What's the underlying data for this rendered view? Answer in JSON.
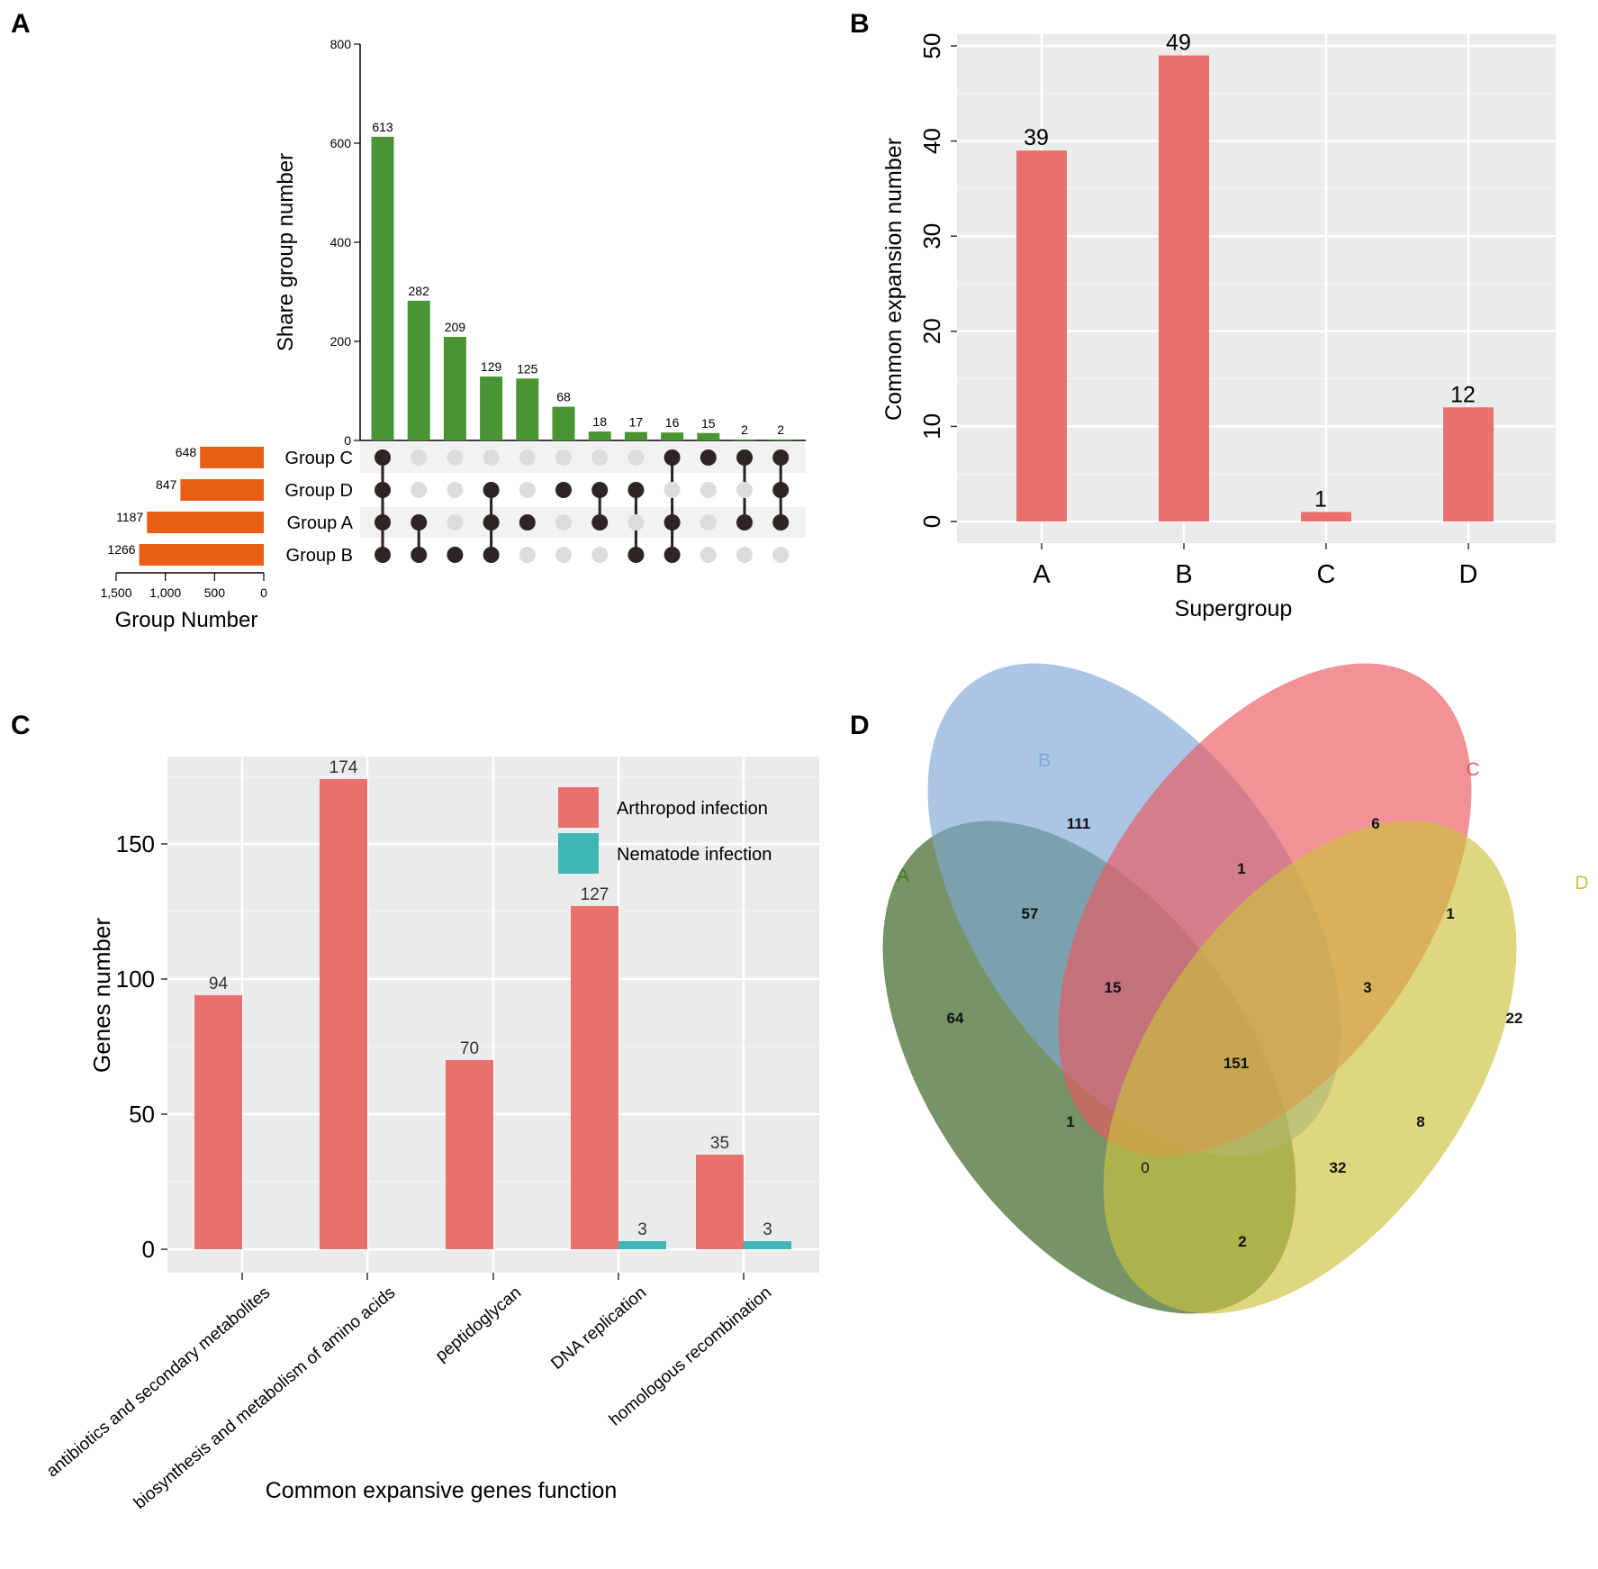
{
  "chart_data": [
    {
      "panel": "A",
      "type": "bar",
      "subtype": "upset",
      "ylabel": "Share group number",
      "ylim": [
        0,
        800
      ],
      "yticks": [
        0,
        200,
        400,
        600,
        800
      ],
      "values": [
        613,
        282,
        209,
        129,
        125,
        68,
        18,
        17,
        16,
        15,
        2,
        2
      ],
      "sets": [
        "Group C",
        "Group D",
        "Group A",
        "Group B"
      ],
      "intersections": [
        [
          "Group C",
          "Group D",
          "Group A",
          "Group B"
        ],
        [
          "Group A",
          "Group B"
        ],
        [
          "Group B"
        ],
        [
          "Group D",
          "Group A",
          "Group B"
        ],
        [
          "Group A"
        ],
        [
          "Group D"
        ],
        [
          "Group D",
          "Group A"
        ],
        [
          "Group D",
          "Group B"
        ],
        [
          "Group C",
          "Group A",
          "Group B"
        ],
        [
          "Group C"
        ],
        [
          "Group C",
          "Group A"
        ],
        [
          "Group C",
          "Group D",
          "Group A"
        ]
      ],
      "set_sizes": [
        648,
        847,
        1187,
        1266
      ],
      "set_size_xlabel": "Group Number",
      "set_size_ticks": [
        "1,500",
        "1,000",
        "500",
        "0"
      ],
      "set_size_tick_values": [
        1500,
        1000,
        500,
        0
      ],
      "bar_color": "#4a9434",
      "set_bar_color": "#ea5f16"
    },
    {
      "panel": "B",
      "type": "bar",
      "categories": [
        "A",
        "B",
        "C",
        "D"
      ],
      "values": [
        39,
        49,
        1,
        12
      ],
      "xlabel": "Supergroup",
      "ylabel": "Common expansion number",
      "ylim": [
        -2.5,
        51.5
      ],
      "yticks": [
        0,
        10,
        20,
        30,
        40,
        50
      ],
      "bar_color": "#e9706c"
    },
    {
      "panel": "C",
      "type": "bar",
      "categories": [
        "antibiotics and secondary metabolites",
        "biosynthesis and metabolism of amino acids",
        "peptidoglycan",
        "DNA replication",
        "homologous recombination"
      ],
      "series": [
        {
          "name": "Arthropod infection",
          "values": [
            94,
            174,
            70,
            127,
            35
          ],
          "color": "#e9706c"
        },
        {
          "name": "Nematode infection",
          "values": [
            null,
            null,
            null,
            3,
            3
          ],
          "color": "#3fb6b3"
        }
      ],
      "xlabel": "Common expansive genes function",
      "ylabel": "Genes number",
      "ylim": [
        -9,
        183
      ],
      "yticks": [
        0,
        50,
        100,
        150
      ],
      "legend": "top-right"
    },
    {
      "panel": "D",
      "type": "venn",
      "sets": [
        {
          "name": "A",
          "color": "#2e5a14"
        },
        {
          "name": "B",
          "color": "#7ea6d6"
        },
        {
          "name": "C",
          "color": "#e9585e"
        },
        {
          "name": "D",
          "color": "#ccc23c"
        }
      ],
      "regions": [
        {
          "sets": "A",
          "value": 64
        },
        {
          "sets": "B",
          "value": 111
        },
        {
          "sets": "C",
          "value": 6
        },
        {
          "sets": "D",
          "value": 22
        },
        {
          "sets": "AB",
          "value": 57
        },
        {
          "sets": "BC",
          "value": 1
        },
        {
          "sets": "CD",
          "value": 1
        },
        {
          "sets": "ABC",
          "value": 15
        },
        {
          "sets": "BCD",
          "value": 3
        },
        {
          "sets": "ABCD",
          "value": 151
        },
        {
          "sets": "AC",
          "value": 1
        },
        {
          "sets": "BD",
          "value": 8
        },
        {
          "sets": "ACD",
          "value": 0
        },
        {
          "sets": "ABD",
          "value": 32
        },
        {
          "sets": "AD",
          "value": 2
        }
      ]
    }
  ],
  "panel_labels": [
    "A",
    "B",
    "C",
    "D"
  ]
}
